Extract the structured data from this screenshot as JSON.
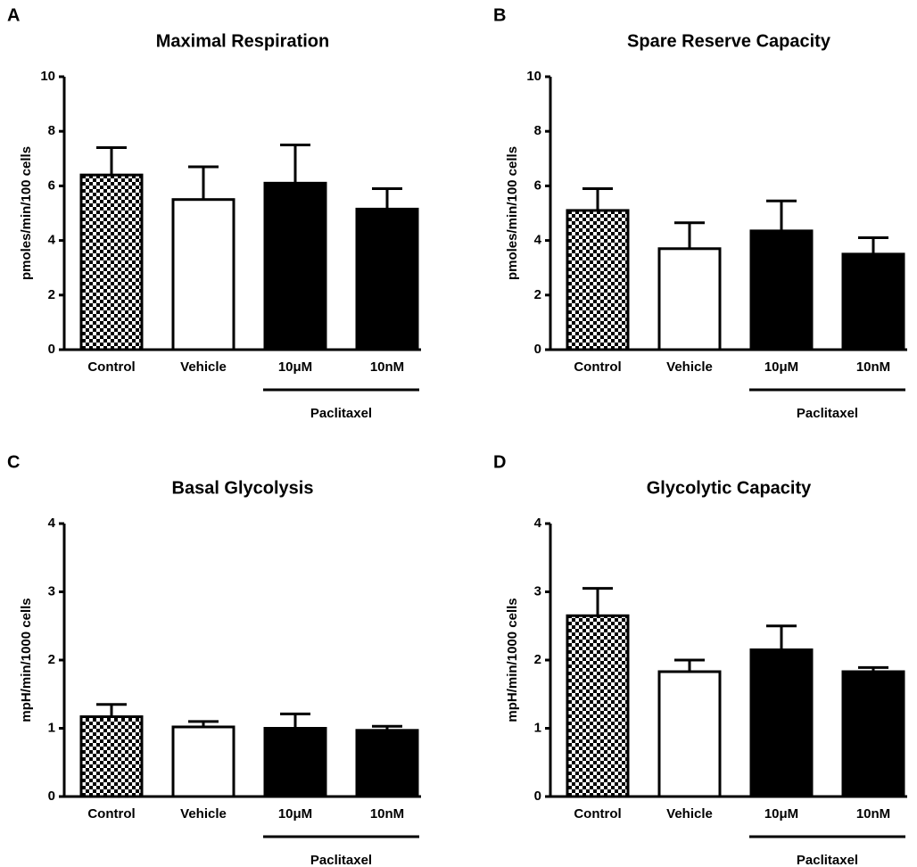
{
  "chart_data": [
    {
      "type": "bar",
      "panel": "A",
      "title": "Maximal Respiration",
      "y_label": "pmoles/min/100 cells",
      "categories": [
        "Control",
        "Vehicle",
        "10μM",
        "10nM"
      ],
      "values": [
        6.4,
        5.5,
        6.1,
        5.15
      ],
      "errors": [
        1.0,
        1.2,
        1.4,
        0.75
      ],
      "fills": [
        "checker",
        "#ffffff",
        "#000000",
        "#000000"
      ],
      "groups": [
        {
          "label": "Paclitaxel",
          "categories": [
            "10μM",
            "10nM"
          ]
        }
      ],
      "ylim": [
        0,
        10
      ],
      "yticks": [
        0,
        2,
        4,
        6,
        8,
        10
      ]
    },
    {
      "type": "bar",
      "panel": "B",
      "title": "Spare Reserve Capacity",
      "y_label": "pmoles/min/100 cells",
      "categories": [
        "Control",
        "Vehicle",
        "10μM",
        "10nM"
      ],
      "values": [
        5.1,
        3.7,
        4.35,
        3.5
      ],
      "errors": [
        0.8,
        0.95,
        1.1,
        0.6
      ],
      "fills": [
        "checker",
        "#ffffff",
        "#000000",
        "#000000"
      ],
      "groups": [
        {
          "label": "Paclitaxel",
          "categories": [
            "10μM",
            "10nM"
          ]
        }
      ],
      "ylim": [
        0,
        10
      ],
      "yticks": [
        0,
        2,
        4,
        6,
        8,
        10
      ]
    },
    {
      "type": "bar",
      "panel": "C",
      "title": "Basal Glycolysis",
      "y_label": "mpH/min/1000 cells",
      "categories": [
        "Control",
        "Vehicle",
        "10μM",
        "10nM"
      ],
      "values": [
        1.17,
        1.02,
        1.0,
        0.97
      ],
      "errors": [
        0.18,
        0.08,
        0.21,
        0.06
      ],
      "fills": [
        "checker",
        "#ffffff",
        "#000000",
        "#000000"
      ],
      "groups": [
        {
          "label": "Paclitaxel",
          "categories": [
            "10μM",
            "10nM"
          ]
        }
      ],
      "ylim": [
        0,
        4
      ],
      "yticks": [
        0,
        1,
        2,
        3,
        4
      ]
    },
    {
      "type": "bar",
      "panel": "D",
      "title": "Glycolytic Capacity",
      "y_label": "mpH/min/1000 cells",
      "categories": [
        "Control",
        "Vehicle",
        "10μM",
        "10nM"
      ],
      "values": [
        2.65,
        1.83,
        2.15,
        1.83
      ],
      "errors": [
        0.4,
        0.17,
        0.35,
        0.06
      ],
      "fills": [
        "checker",
        "#ffffff",
        "#000000",
        "#000000"
      ],
      "groups": [
        {
          "label": "Paclitaxel",
          "categories": [
            "10μM",
            "10nM"
          ]
        }
      ],
      "ylim": [
        0,
        4
      ],
      "yticks": [
        0,
        1,
        2,
        3,
        4
      ]
    }
  ]
}
